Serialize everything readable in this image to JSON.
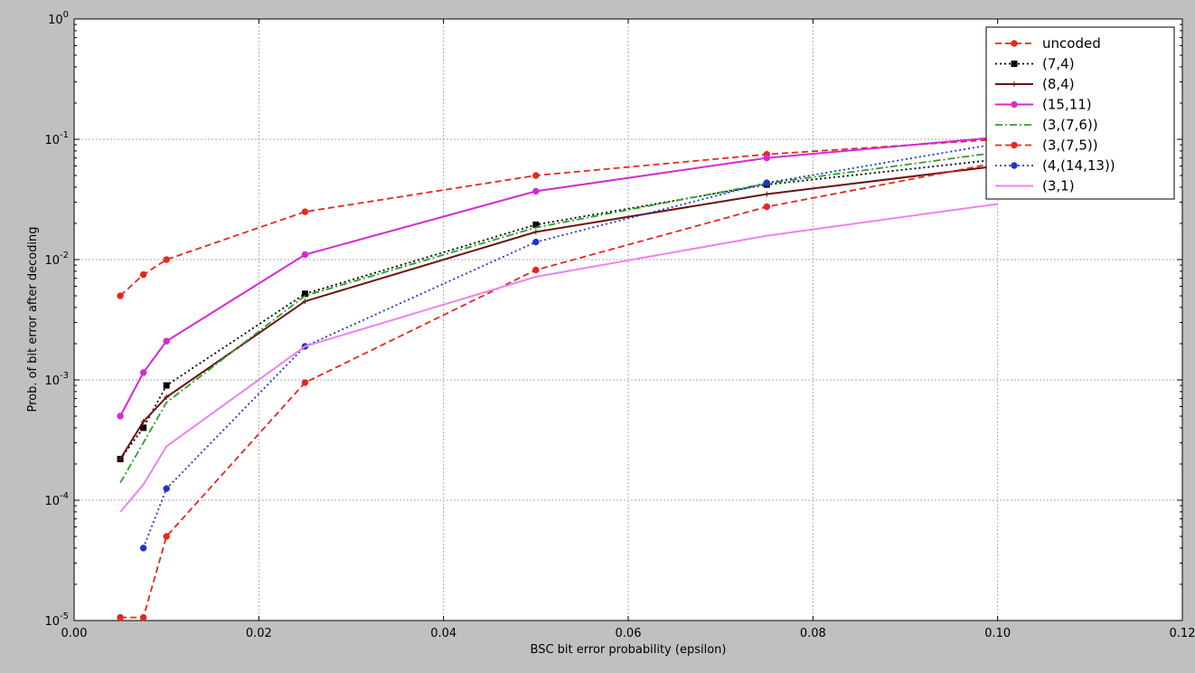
{
  "chart_data": {
    "type": "line",
    "title": "",
    "xlabel": "BSC bit error probability (epsilon)",
    "ylabel": "Prob. of bit error after decoding",
    "xlim": [
      0.0,
      0.12
    ],
    "ylim": [
      1e-05,
      1
    ],
    "yscale": "log",
    "grid": true,
    "legend_position": "top-right",
    "x_ticks": [
      "0.00",
      "0.02",
      "0.04",
      "0.06",
      "0.08",
      "0.10",
      "0.12"
    ],
    "y_ticks": [
      {
        "base": "10",
        "exp": "-5"
      },
      {
        "base": "10",
        "exp": "-4"
      },
      {
        "base": "10",
        "exp": "-3"
      },
      {
        "base": "10",
        "exp": "-2"
      },
      {
        "base": "10",
        "exp": "-1"
      },
      {
        "base": "10",
        "exp": "0"
      }
    ],
    "x": [
      0.005,
      0.0075,
      0.01,
      0.025,
      0.05,
      0.075,
      0.1
    ],
    "series": [
      {
        "name": "uncoded",
        "color": "#e8261e",
        "dash": "dashed",
        "marker": "circle",
        "values": [
          0.005,
          0.0075,
          0.01,
          0.025,
          0.05,
          0.075,
          0.1
        ]
      },
      {
        "name": "(7,4)",
        "color": "#000000",
        "dash": "dotted",
        "marker": "square",
        "values": [
          0.00022,
          0.0004,
          0.0009,
          0.0052,
          0.0195,
          0.042,
          0.068
        ]
      },
      {
        "name": "(8,4)",
        "color": "#6b1010",
        "dash": "solid",
        "marker": "plus",
        "values": [
          0.00022,
          0.00045,
          0.00072,
          0.0045,
          0.017,
          0.035,
          0.06
        ]
      },
      {
        "name": "(15,11)",
        "color": "#d42ad4",
        "dash": "solid",
        "marker": "circle",
        "values": [
          0.0005,
          0.00115,
          0.0021,
          0.011,
          0.037,
          0.07,
          0.104
        ]
      },
      {
        "name": "(3,(7,6))",
        "color": "#2aa02a",
        "dash": "dashdot",
        "marker": "none",
        "values": [
          0.00014,
          0.0003,
          0.00065,
          0.005,
          0.0185,
          0.043,
          0.078
        ]
      },
      {
        "name": "(3,(7,5))",
        "color": "#e8261e",
        "dash": "dashed",
        "marker": "circle",
        "values": [
          1.06e-05,
          1.06e-05,
          5e-05,
          0.00095,
          0.0082,
          0.0275,
          0.064
        ]
      },
      {
        "name": "(4,(14,13))",
        "color": "#2233cc",
        "dash": "dotted",
        "marker": "circle",
        "values": [
          null,
          4e-05,
          0.000125,
          0.0019,
          0.014,
          0.0435,
          0.092
        ]
      },
      {
        "name": "(3,1)",
        "color": "#ee82ee",
        "dash": "solid",
        "marker": "none",
        "values": [
          8e-05,
          0.000135,
          0.00028,
          0.0019,
          0.0072,
          0.0158,
          0.029
        ]
      }
    ]
  }
}
